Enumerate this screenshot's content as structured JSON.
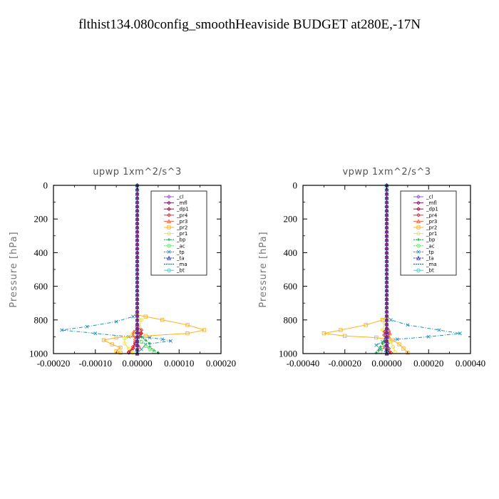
{
  "page": {
    "title": "flthist134.080config_smoothHeaviside  BUDGET at280E,-17N"
  },
  "legend_items": [
    "_cl",
    "_mfl",
    "_dp1",
    "_pr4",
    "_pr3",
    "_pr2",
    "_pr1",
    "_bp",
    "_ac",
    "_tp",
    "_ta",
    "_ma",
    "_bt"
  ],
  "colors": {
    "_cl": "#9b59d0",
    "_mfl": "#7a1e66",
    "_dp1": "#b8003a",
    "_pr4": "#e03030",
    "_pr3": "#ff6040",
    "_pr2": "#ffb020",
    "_pr1": "#f0e040",
    "_bp": "#10a040",
    "_ac": "#60e060",
    "_tp": "#2090c0",
    "_ta": "#3030c0",
    "_ma": "#104090",
    "_bt": "#20e0e0"
  },
  "chart_data": [
    {
      "type": "line",
      "title": "upwp   1xm^2/s^3",
      "ylabel": "Pressure [hPa]",
      "xlabel": "",
      "xlim": [
        -0.0002,
        0.0002
      ],
      "ylim": [
        1000,
        0
      ],
      "xticks": [
        "-0.00020",
        "-0.00010",
        "0.00000",
        "0.00010",
        "0.00020"
      ],
      "yticks": [
        "0",
        "200",
        "400",
        "600",
        "800",
        "1000"
      ],
      "legend_position": "top-right",
      "series": [
        {
          "name": "_tp",
          "points": [
            [
              0,
              760
            ],
            [
              -1e-05,
              780
            ],
            [
              -5e-05,
              810
            ],
            [
              -0.00012,
              840
            ],
            [
              -0.00018,
              860
            ],
            [
              -0.0001,
              880
            ],
            [
              -2e-05,
              900
            ],
            [
              3e-05,
              905
            ],
            [
              6e-05,
              915
            ],
            [
              8e-05,
              925
            ],
            [
              2e-05,
              945
            ],
            [
              1e-05,
              975
            ],
            [
              0,
              995
            ]
          ]
        },
        {
          "name": "_pr2",
          "points": [
            [
              0,
              770
            ],
            [
              2e-05,
              780
            ],
            [
              6e-05,
              800
            ],
            [
              0.00012,
              830
            ],
            [
              0.00016,
              860
            ],
            [
              0.00012,
              880
            ],
            [
              2e-05,
              895
            ],
            [
              -5e-05,
              905
            ],
            [
              -8e-05,
              920
            ],
            [
              -6e-05,
              945
            ],
            [
              -4e-05,
              965
            ],
            [
              -5e-05,
              985
            ],
            [
              -4e-05,
              995
            ]
          ]
        },
        {
          "name": "_pr1",
          "points": [
            [
              0,
              780
            ],
            [
              1e-05,
              800
            ],
            [
              5e-06,
              840
            ],
            [
              -1e-05,
              880
            ],
            [
              -3e-05,
              910
            ],
            [
              -3e-05,
              940
            ],
            [
              -2e-05,
              970
            ],
            [
              -1e-05,
              995
            ]
          ]
        },
        {
          "name": "_bp",
          "points": [
            [
              0,
              880
            ],
            [
              1e-05,
              900
            ],
            [
              2e-05,
              920
            ],
            [
              3e-05,
              940
            ],
            [
              3e-05,
              960
            ],
            [
              4e-05,
              980
            ],
            [
              5e-05,
              995
            ]
          ]
        },
        {
          "name": "_ac",
          "points": [
            [
              0,
              900
            ],
            [
              1e-05,
              930
            ],
            [
              2e-05,
              955
            ],
            [
              3e-05,
              975
            ],
            [
              4e-05,
              990
            ]
          ]
        },
        {
          "name": "_dp1",
          "points": [
            [
              0,
              860
            ],
            [
              8e-06,
              880
            ],
            [
              5e-06,
              900
            ],
            [
              -5e-06,
              940
            ],
            [
              -1e-05,
              970
            ],
            [
              -2e-05,
              995
            ]
          ]
        },
        {
          "name": "_pr4",
          "points": [
            [
              0,
              840
            ],
            [
              1e-05,
              860
            ],
            [
              1e-05,
              880
            ],
            [
              5e-06,
              900
            ],
            [
              -5e-06,
              930
            ],
            [
              -1e-05,
              960
            ],
            [
              -2e-05,
              990
            ]
          ]
        },
        {
          "name": "_pr3",
          "points": [
            [
              0,
              850
            ],
            [
              -8e-06,
              870
            ],
            [
              -1e-05,
              890
            ],
            [
              -5e-06,
              910
            ],
            [
              0,
              930
            ],
            [
              5e-06,
              960
            ],
            [
              0,
              995
            ]
          ]
        },
        {
          "name": "_bt",
          "points": [
            [
              0,
              0
            ],
            [
              0,
              1000
            ]
          ]
        },
        {
          "name": "_ma",
          "points": [
            [
              0,
              0
            ],
            [
              0,
              1000
            ]
          ]
        },
        {
          "name": "_ta",
          "points": [
            [
              0,
              0
            ],
            [
              0,
              1000
            ]
          ]
        },
        {
          "name": "_cl",
          "points": [
            [
              0,
              0
            ],
            [
              0,
              1000
            ]
          ]
        },
        {
          "name": "_mfl",
          "points": [
            [
              0,
              0
            ],
            [
              0,
              1000
            ]
          ]
        }
      ]
    },
    {
      "type": "line",
      "title": "vpwp   1xm^2/s^3",
      "ylabel": "Pressure [hPa]",
      "xlabel": "",
      "xlim": [
        -0.0004,
        0.0004
      ],
      "ylim": [
        1000,
        0
      ],
      "xticks": [
        "-0.00040",
        "-0.00020",
        "0.00000",
        "0.00020",
        "0.00040"
      ],
      "yticks": [
        "0",
        "200",
        "400",
        "600",
        "800",
        "1000"
      ],
      "legend_position": "top-right",
      "series": [
        {
          "name": "_tp",
          "points": [
            [
              0,
              780
            ],
            [
              2e-05,
              800
            ],
            [
              0.0001,
              830
            ],
            [
              0.00025,
              860
            ],
            [
              0.00035,
              880
            ],
            [
              0.0002,
              900
            ],
            [
              5e-05,
              915
            ],
            [
              -2e-05,
              930
            ],
            [
              -5e-05,
              950
            ],
            [
              -3e-05,
              975
            ],
            [
              0,
              995
            ]
          ]
        },
        {
          "name": "_pr2",
          "points": [
            [
              0,
              780
            ],
            [
              -2e-05,
              800
            ],
            [
              -0.0001,
              830
            ],
            [
              -0.00022,
              860
            ],
            [
              -0.0003,
              880
            ],
            [
              -0.0002,
              895
            ],
            [
              -5e-05,
              905
            ],
            [
              3e-05,
              920
            ],
            [
              6e-05,
              945
            ],
            [
              8e-05,
              970
            ],
            [
              0.0001,
              995
            ]
          ]
        },
        {
          "name": "_pr1",
          "points": [
            [
              0,
              790
            ],
            [
              -1e-05,
              820
            ],
            [
              -2e-05,
              860
            ],
            [
              0,
              900
            ],
            [
              2e-05,
              930
            ],
            [
              3e-05,
              960
            ],
            [
              4e-05,
              990
            ]
          ]
        },
        {
          "name": "_bp",
          "points": [
            [
              0,
              900
            ],
            [
              -1e-05,
              920
            ],
            [
              -2e-05,
              940
            ],
            [
              -3e-05,
              960
            ],
            [
              -4e-05,
              980
            ],
            [
              -5e-05,
              995
            ]
          ]
        },
        {
          "name": "_ac",
          "points": [
            [
              0,
              910
            ],
            [
              -1e-05,
              940
            ],
            [
              -2e-05,
              965
            ],
            [
              -3e-05,
              990
            ]
          ]
        },
        {
          "name": "_dp1",
          "points": [
            [
              0,
              860
            ],
            [
              1e-05,
              880
            ],
            [
              5e-06,
              900
            ],
            [
              -5e-06,
              930
            ],
            [
              0,
              960
            ],
            [
              1e-05,
              995
            ]
          ]
        },
        {
          "name": "_pr4",
          "points": [
            [
              0,
              850
            ],
            [
              -1e-05,
              870
            ],
            [
              -1.2e-05,
              890
            ],
            [
              -5e-06,
              910
            ],
            [
              5e-06,
              940
            ],
            [
              1e-05,
              970
            ],
            [
              2e-05,
              995
            ]
          ]
        },
        {
          "name": "_pr3",
          "points": [
            [
              0,
              840
            ],
            [
              1e-05,
              860
            ],
            [
              1.5e-05,
              880
            ],
            [
              1e-05,
              900
            ],
            [
              0,
              930
            ],
            [
              -1e-05,
              960
            ],
            [
              0,
              995
            ]
          ]
        },
        {
          "name": "_bt",
          "points": [
            [
              0,
              0
            ],
            [
              0,
              1000
            ]
          ]
        },
        {
          "name": "_ma",
          "points": [
            [
              0,
              0
            ],
            [
              0,
              1000
            ]
          ]
        },
        {
          "name": "_ta",
          "points": [
            [
              0,
              0
            ],
            [
              0,
              1000
            ]
          ]
        },
        {
          "name": "_cl",
          "points": [
            [
              0,
              0
            ],
            [
              0,
              1000
            ]
          ]
        },
        {
          "name": "_mfl",
          "points": [
            [
              0,
              0
            ],
            [
              0,
              1000
            ]
          ]
        }
      ]
    }
  ]
}
